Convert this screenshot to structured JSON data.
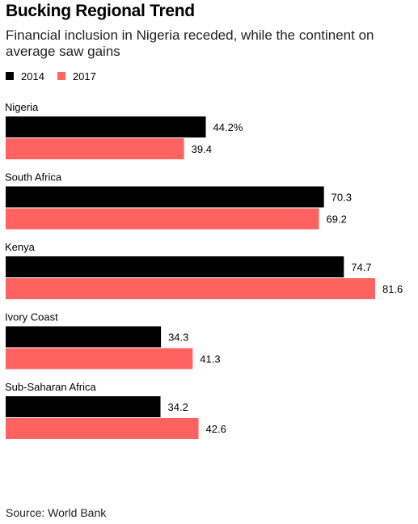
{
  "chart_data": {
    "type": "bar",
    "orientation": "horizontal",
    "title": "Bucking Regional Trend",
    "subtitle": "Financial inclusion in Nigeria receded, while the continent on average saw gains",
    "categories": [
      "Nigeria",
      "South Africa",
      "Kenya",
      "Ivory Coast",
      "Sub-Saharan Africa"
    ],
    "series": [
      {
        "name": "2014",
        "color": "#000000",
        "values": [
          44.2,
          70.3,
          74.7,
          34.3,
          34.2
        ],
        "data_labels": [
          "44.2%",
          "70.3",
          "74.7",
          "34.3",
          "34.2"
        ]
      },
      {
        "name": "2017",
        "color": "#ff6361",
        "values": [
          39.4,
          69.2,
          81.6,
          41.3,
          42.6
        ],
        "data_labels": [
          "39.4",
          "69.2",
          "81.6",
          "41.3",
          "42.6"
        ]
      }
    ],
    "xlim": [
      0,
      100
    ],
    "legend_position": "top-left",
    "grid": false,
    "source": "Source: World Bank"
  }
}
